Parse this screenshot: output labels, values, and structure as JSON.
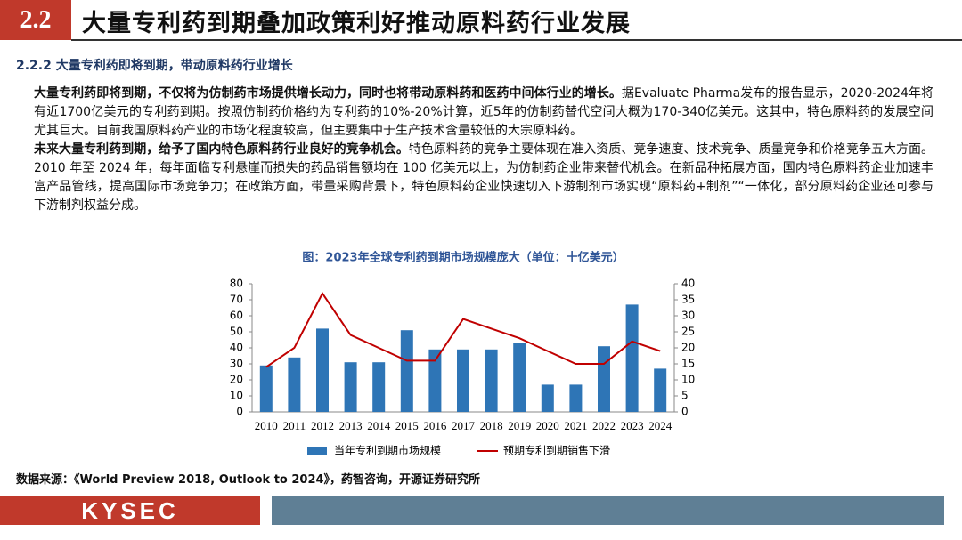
{
  "header": {
    "number": "2.2",
    "title": "大量专利药到期叠加政策利好推动原料药行业发展"
  },
  "subtitle": "2.2.2 大量专利药即将到期，带动原料药行业增长",
  "paragraphs": [
    {
      "bold": "大量专利药即将到期，不仅将为仿制药市场提供增长动力，同时也将带动原料药和医药中间体行业的增长。",
      "text": "据Evaluate Pharma发布的报告显示，2020-2024年将有近1700亿美元的专利药到期。按照仿制药价格约为专利药的10%-20%计算，近5年的仿制药替代空间大概为170-340亿美元。这其中，特色原料药的发展空间尤其巨大。目前我国原料药产业的市场化程度较高，但主要集中于生产技术含量较低的大宗原料药。"
    },
    {
      "bold": "未来大量专利药到期，给予了国内特色原料药行业良好的竞争机会。",
      "text": "特色原料药的竞争主要体现在准入资质、竞争速度、技术竞争、质量竞争和价格竞争五大方面。2010 年至 2024 年，每年面临专利悬崖而损失的药品销售额均在 100 亿美元以上，为仿制药企业带来替代机会。在新品种拓展方面，国内特色原料药企业加速丰富产品管线，提高国际市场竞争力；在政策方面，带量采购背景下，特色原料药企业快速切入下游制剂市场实现“原料药+制剂”“一体化，部分原料药企业还可参与下游制剂权益分成。"
    }
  ],
  "chart_data": {
    "type": "bar-line",
    "title": "图：2023年全球专利药到期市场规模庞大（单位：十亿美元）",
    "categories": [
      "2010",
      "2011",
      "2012",
      "2013",
      "2014",
      "2015",
      "2016",
      "2017",
      "2018",
      "2019",
      "2020",
      "2021",
      "2022",
      "2023",
      "2024"
    ],
    "series": [
      {
        "name": "当年专利到期市场规模",
        "type": "bar",
        "color": "#2e75b6",
        "values": [
          29,
          34,
          52,
          31,
          31,
          51,
          39,
          39,
          39,
          43,
          17,
          17,
          41,
          67,
          27
        ]
      },
      {
        "name": "预期专利到期销售下滑",
        "type": "line",
        "axis": "y2",
        "color": "#c00000",
        "values": [
          14,
          20,
          37,
          24,
          20,
          16,
          16,
          29,
          26,
          23,
          19,
          15,
          15,
          22,
          19
        ]
      }
    ],
    "ylim": [
      0,
      80
    ],
    "yticks": [
      0,
      10,
      20,
      30,
      40,
      50,
      60,
      70,
      80
    ],
    "y2lim": [
      0,
      40
    ],
    "y2ticks": [
      0,
      5,
      10,
      15,
      20,
      25,
      30,
      35,
      40
    ]
  },
  "source": "数据来源：《World Preview 2018, Outlook to 2024》，药智咨询，开源证券研究所",
  "footer": {
    "logo": "KYSEC"
  }
}
